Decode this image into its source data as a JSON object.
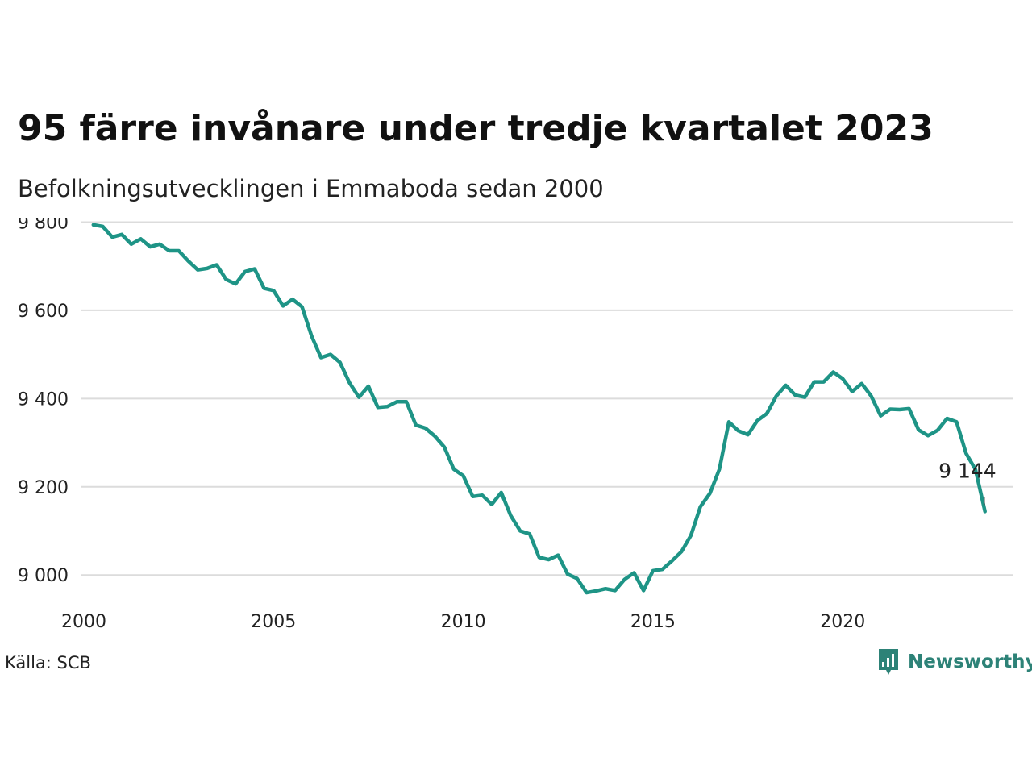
{
  "title": "95 färre invånare under tredje kvartalet 2023",
  "subtitle": "Befolkningsutvecklingen i Emmaboda sedan 2000",
  "source": "Källa: SCB",
  "brand": {
    "name": "Newsworthy",
    "icon": "bar-chart-speech-bubble-icon",
    "color": "#2d8277"
  },
  "chart_data": {
    "type": "line",
    "title": "95 färre invånare under tredje kvartalet 2023",
    "xlabel": "",
    "ylabel": "",
    "xlim": [
      2000,
      2024.45
    ],
    "ylim": [
      8920,
      9810
    ],
    "grid": true,
    "legend": "none",
    "line_color": "#1e9486",
    "x_ticks": [
      2000,
      2005,
      2010,
      2015,
      2020
    ],
    "x_tick_labels": [
      "2000",
      "2005",
      "2010",
      "2015",
      "2020"
    ],
    "y_ticks": [
      9000,
      9200,
      9400,
      9600,
      9800
    ],
    "y_tick_labels": [
      "9 000",
      "9 200",
      "9 400",
      "9 600",
      "9 800"
    ],
    "end_label": "9 144",
    "series": [
      {
        "x": [
          2000.25,
          2000.5,
          2000.75,
          2001.0,
          2001.25,
          2001.5,
          2001.75,
          2002.0,
          2002.25,
          2002.5,
          2002.75,
          2003.0,
          2003.25,
          2003.5,
          2003.75,
          2004.0,
          2004.25,
          2004.5,
          2004.75,
          2005.0,
          2005.25,
          2005.5,
          2005.75,
          2006.0,
          2006.25,
          2006.5,
          2006.75,
          2007.0,
          2007.25,
          2007.5,
          2007.75,
          2008.0,
          2008.25,
          2008.5,
          2008.75,
          2009.0,
          2009.25,
          2009.5,
          2009.75,
          2010.0,
          2010.25,
          2010.5,
          2010.75,
          2011.0,
          2011.25,
          2011.5,
          2011.75,
          2012.0,
          2012.25,
          2012.5,
          2012.75,
          2013.0,
          2013.25,
          2013.5,
          2013.75,
          2014.0,
          2014.25,
          2014.5,
          2014.75,
          2015.0,
          2015.25,
          2015.5,
          2015.75,
          2016.0,
          2016.25,
          2016.5,
          2016.75,
          2017.0,
          2017.25,
          2017.5,
          2017.75,
          2018.0,
          2018.25,
          2018.5,
          2018.75,
          2019.0,
          2019.25,
          2019.5,
          2019.75,
          2020.0,
          2020.25,
          2020.5,
          2020.75,
          2021.0,
          2021.25,
          2021.5,
          2021.75,
          2022.0,
          2022.25,
          2022.5,
          2022.75,
          2023.0,
          2023.25,
          2023.5,
          2023.75
        ],
        "y": [
          9794,
          9790,
          9766,
          9772,
          9750,
          9762,
          9744,
          9750,
          9735,
          9735,
          9712,
          9692,
          9695,
          9703,
          9670,
          9660,
          9688,
          9694,
          9650,
          9645,
          9610,
          9625,
          9608,
          9542,
          9493,
          9500,
          9482,
          9436,
          9403,
          9428,
          9380,
          9382,
          9393,
          9393,
          9340,
          9333,
          9315,
          9290,
          9240,
          9225,
          9178,
          9181,
          9160,
          9187,
          9135,
          9100,
          9093,
          9040,
          9035,
          9045,
          9002,
          8992,
          8960,
          8964,
          8969,
          8965,
          8990,
          9005,
          8965,
          9010,
          9013,
          9032,
          9053,
          9090,
          9155,
          9185,
          9240,
          9347,
          9327,
          9318,
          9350,
          9366,
          9406,
          9430,
          9408,
          9403,
          9438,
          9438,
          9460,
          9445,
          9416,
          9434,
          9406,
          9361,
          9376,
          9375,
          9377,
          9329,
          9316,
          9328,
          9355,
          9347,
          9276,
          9239,
          9144
        ]
      }
    ]
  }
}
